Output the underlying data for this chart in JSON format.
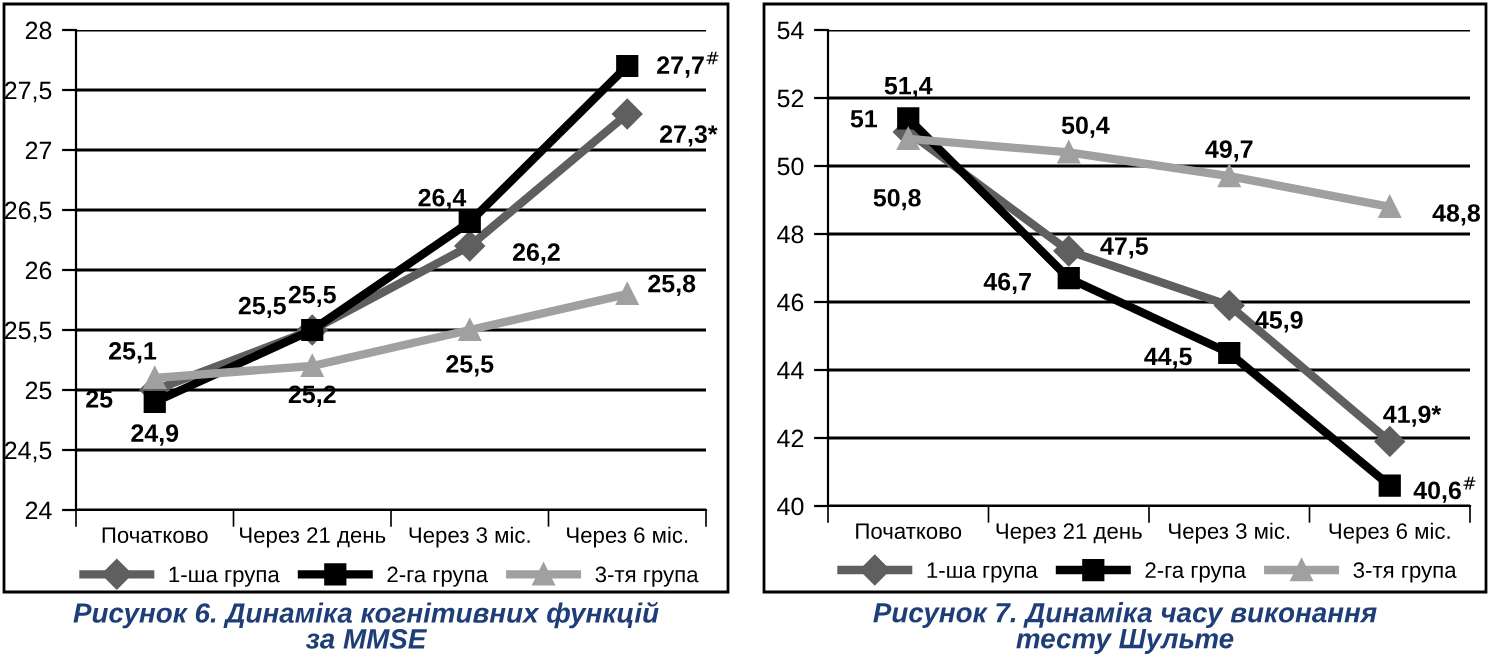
{
  "chart_data": [
    {
      "type": "line",
      "title": "Рисунок 6. Динаміка когнітивних функцій\nза MMSE",
      "categories": [
        "Початково",
        "Через 21 день",
        "Через 3 міс.",
        "Через 6 міс."
      ],
      "series": [
        {
          "name": "1-ша група",
          "color": "#5f5f5f",
          "marker": "diamond",
          "values": [
            25,
            25.5,
            26.2,
            27.3
          ],
          "value_labels": [
            "25",
            "25,5",
            "26,2",
            "27,3*"
          ]
        },
        {
          "name": "2-га група",
          "color": "#000000",
          "marker": "square",
          "values": [
            24.9,
            25.5,
            26.4,
            27.7
          ],
          "value_labels": [
            "24,9",
            "25,5",
            "26,4",
            "27,7$^{#}$"
          ]
        },
        {
          "name": "3-тя група",
          "color": "#a0a0a0",
          "marker": "triangle",
          "values": [
            25.1,
            25.2,
            25.5,
            25.8
          ],
          "value_labels": [
            "25,1",
            "25,2",
            "25,5",
            "25,8"
          ]
        }
      ],
      "ylim": [
        24,
        28
      ],
      "yticks": [
        {
          "value": 24,
          "label": "24"
        },
        {
          "value": 24.5,
          "label": "24,5"
        },
        {
          "value": 25,
          "label": "25"
        },
        {
          "value": 25.5,
          "label": "25,5"
        },
        {
          "value": 26,
          "label": "26"
        },
        {
          "value": 26.5,
          "label": "26,5"
        },
        {
          "value": 27,
          "label": "27"
        },
        {
          "value": 27.5,
          "label": "27,5"
        },
        {
          "value": 28,
          "label": "28"
        }
      ],
      "grid": "y",
      "legend": "bottom"
    },
    {
      "type": "line",
      "title": "Рисунок 7. Динаміка часу виконання\nтесту Шульте",
      "categories": [
        "Початково",
        "Через 21 день",
        "Через 3 міс.",
        "Через 6 міс."
      ],
      "series": [
        {
          "name": "1-ша група",
          "color": "#5f5f5f",
          "marker": "diamond",
          "values": [
            51,
            47.5,
            45.9,
            41.9
          ],
          "value_labels": [
            "51",
            "47,5",
            "45,9",
            "41,9*"
          ]
        },
        {
          "name": "2-га група",
          "color": "#000000",
          "marker": "square",
          "values": [
            51.4,
            46.7,
            44.5,
            40.6
          ],
          "value_labels": [
            "51,4",
            "46,7",
            "44,5",
            "40,6$^{#}$"
          ]
        },
        {
          "name": "3-тя група",
          "color": "#a0a0a0",
          "marker": "triangle",
          "values": [
            50.8,
            50.4,
            49.7,
            48.8
          ],
          "value_labels": [
            "50,8",
            "50,4",
            "49,7",
            "48,8"
          ]
        }
      ],
      "ylim": [
        40,
        54
      ],
      "yticks": [
        40,
        42,
        44,
        46,
        48,
        50,
        52,
        54
      ],
      "grid": "y",
      "legend": "bottom"
    }
  ]
}
